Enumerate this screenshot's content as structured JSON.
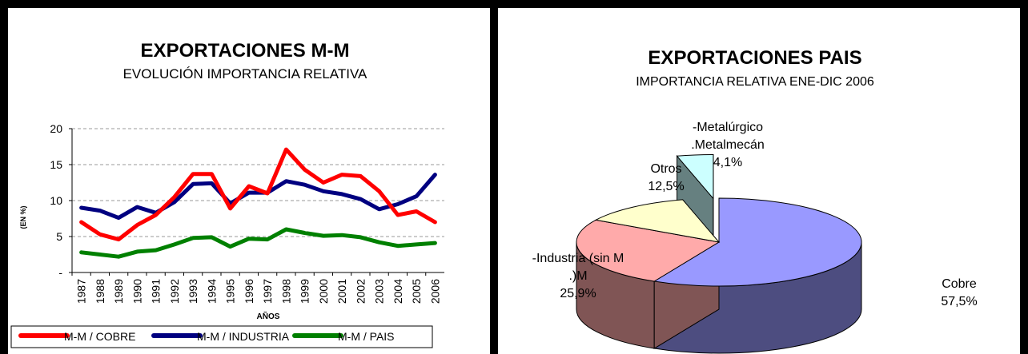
{
  "chart_data": [
    {
      "type": "line",
      "title": "EXPORTACIONES M-M",
      "subtitle": "EVOLUCIÓN IMPORTANCIA RELATIVA",
      "xlabel": "AÑOS",
      "ylabel": "(EN %)",
      "ylim": [
        0,
        20
      ],
      "yticks": [
        "-",
        "5",
        "10",
        "15",
        "20"
      ],
      "grid": true,
      "legend": "bottom",
      "categories": [
        "1987",
        "1988",
        "1989",
        "1990",
        "1991",
        "1992",
        "1993",
        "1994",
        "1995",
        "1996",
        "1997",
        "1998",
        "1999",
        "2000",
        "2001",
        "2002",
        "2003",
        "2004",
        "2005",
        "2006"
      ],
      "series": [
        {
          "name": "M-M / COBRE",
          "color": "#ff0000",
          "values": [
            7.0,
            5.3,
            4.6,
            6.6,
            8.0,
            10.5,
            13.7,
            13.7,
            8.9,
            12.0,
            11.0,
            17.1,
            14.3,
            12.5,
            13.6,
            13.4,
            11.3,
            8.0,
            8.5,
            7.0
          ]
        },
        {
          "name": "M-M / INDUSTRIA",
          "color": "#000080",
          "values": [
            9.0,
            8.6,
            7.6,
            9.1,
            8.3,
            9.8,
            12.3,
            12.4,
            9.6,
            11.1,
            11.1,
            12.7,
            12.2,
            11.3,
            10.9,
            10.2,
            8.8,
            9.5,
            10.6,
            13.6
          ]
        },
        {
          "name": "M-M / PAIS",
          "color": "#008000",
          "values": [
            2.8,
            2.5,
            2.2,
            2.9,
            3.1,
            3.9,
            4.8,
            4.9,
            3.6,
            4.7,
            4.6,
            6.0,
            5.5,
            5.1,
            5.2,
            4.9,
            4.2,
            3.7,
            3.9,
            4.1
          ]
        }
      ]
    },
    {
      "type": "pie",
      "title": "EXPORTACIONES PAIS",
      "subtitle": "IMPORTANCIA RELATIVA ENE-DIC 2006",
      "slices": [
        {
          "label": "Cobre",
          "value": 57.5,
          "value_label": "57,5%",
          "color": "#9999ff",
          "side": "#4d4d80"
        },
        {
          "label_lines": [
            "-Industria (sin M",
            ".)M"
          ],
          "value": 25.9,
          "value_label": "25,9%",
          "color": "#ffaaaa",
          "side": "#805555"
        },
        {
          "label": "Otros",
          "value": 12.5,
          "value_label": "12,5%",
          "color": "#ffffcc",
          "side": "#808066"
        },
        {
          "label_lines": [
            "-Metalúrgico",
            ".Metalmecán"
          ],
          "value": 4.1,
          "value_label": "4,1%",
          "color": "#ccffff",
          "side": "#668080",
          "exploded": true
        }
      ]
    }
  ]
}
